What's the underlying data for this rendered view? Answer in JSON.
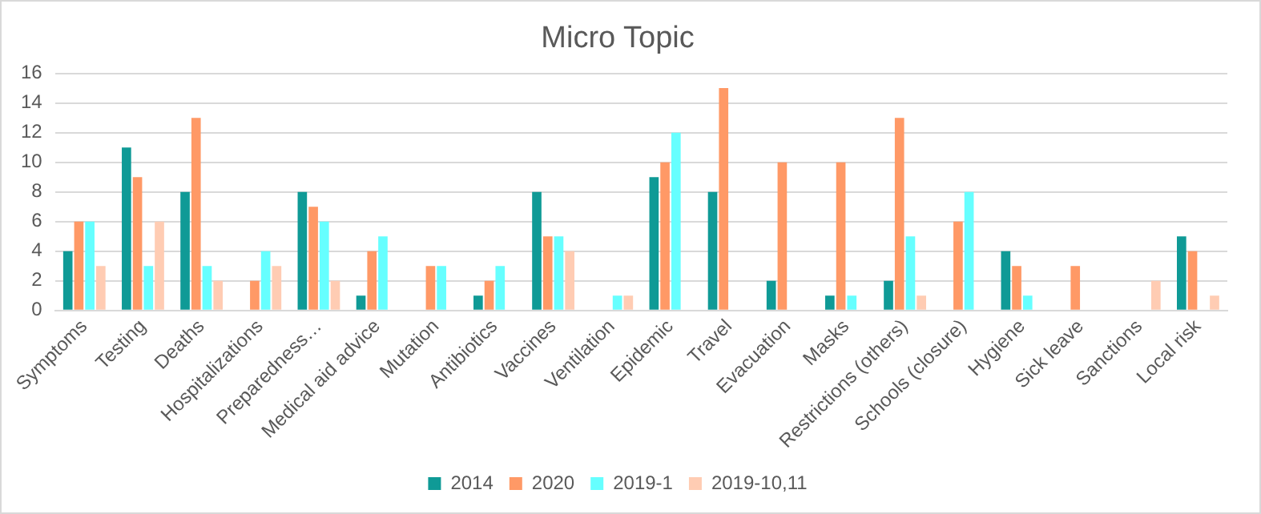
{
  "chart_data": {
    "type": "bar",
    "title": "Micro Topic",
    "categories": [
      "Symptoms",
      "Testing",
      "Deaths",
      "Hospitalizations",
      "Preparedness…",
      "Medical aid advice",
      "Mutation",
      "Antibiotics",
      "Vaccines",
      "Ventilation",
      "Epidemic",
      "Travel",
      "Evacuation",
      "Masks",
      "Restrictions (others)",
      "Schools (closure)",
      "Hygiene",
      "Sick leave",
      "Sanctions",
      "Local risk"
    ],
    "series": [
      {
        "name": "2014",
        "color": "#0f9a96",
        "values": [
          4,
          11,
          8,
          0,
          8,
          1,
          0,
          1,
          8,
          0,
          9,
          8,
          2,
          1,
          2,
          0,
          4,
          0,
          0,
          5
        ]
      },
      {
        "name": "2020",
        "color": "#ff9966",
        "values": [
          6,
          9,
          13,
          2,
          7,
          4,
          3,
          2,
          5,
          0,
          10,
          15,
          10,
          10,
          13,
          6,
          3,
          3,
          0,
          4
        ]
      },
      {
        "name": "2019-1",
        "color": "#66ffff",
        "values": [
          6,
          3,
          3,
          4,
          6,
          5,
          3,
          3,
          5,
          1,
          12,
          0,
          0,
          1,
          5,
          8,
          1,
          0,
          0,
          0
        ]
      },
      {
        "name": "2019-10,11",
        "color": "#ffccb3",
        "values": [
          3,
          6,
          2,
          3,
          2,
          0,
          0,
          0,
          4,
          1,
          0,
          0,
          0,
          0,
          1,
          0,
          0,
          0,
          2,
          1
        ]
      }
    ],
    "ylim": [
      0,
      16
    ],
    "yticks": [
      0,
      2,
      4,
      6,
      8,
      10,
      12,
      14,
      16
    ],
    "grid": "y",
    "legend": "bottom"
  }
}
